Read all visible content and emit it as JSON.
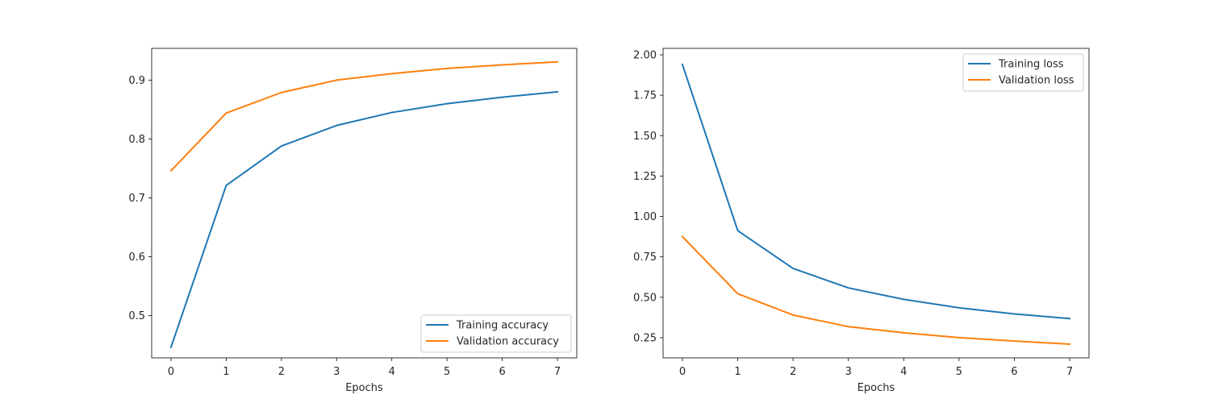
{
  "chart_data": [
    {
      "type": "line",
      "title": "",
      "xlabel": "Epochs",
      "ylabel": "",
      "x": [
        0,
        1,
        2,
        3,
        4,
        5,
        6,
        7
      ],
      "xlim": [
        -0.35,
        7.35
      ],
      "ylim": [
        0.428,
        0.954
      ],
      "xticks": [
        0,
        1,
        2,
        3,
        4,
        5,
        6,
        7
      ],
      "xtick_labels": [
        "0",
        "1",
        "2",
        "3",
        "4",
        "5",
        "6",
        "7"
      ],
      "yticks": [
        0.5,
        0.6,
        0.7,
        0.8,
        0.9
      ],
      "ytick_labels": [
        "0.5",
        "0.6",
        "0.7",
        "0.8",
        "0.9"
      ],
      "grid": false,
      "legend_position": "lower-right",
      "series": [
        {
          "name": "Training accuracy",
          "color": "#1f77b4",
          "values": [
            0.446,
            0.721,
            0.788,
            0.823,
            0.845,
            0.86,
            0.871,
            0.88
          ]
        },
        {
          "name": "Validation accuracy",
          "color": "#ff7f0e",
          "values": [
            0.746,
            0.844,
            0.879,
            0.9,
            0.911,
            0.92,
            0.926,
            0.931
          ]
        }
      ]
    },
    {
      "type": "line",
      "title": "",
      "xlabel": "Epochs",
      "ylabel": "",
      "x": [
        0,
        1,
        2,
        3,
        4,
        5,
        6,
        7
      ],
      "xlim": [
        -0.35,
        7.35
      ],
      "ylim": [
        0.125,
        2.04
      ],
      "xticks": [
        0,
        1,
        2,
        3,
        4,
        5,
        6,
        7
      ],
      "xtick_labels": [
        "0",
        "1",
        "2",
        "3",
        "4",
        "5",
        "6",
        "7"
      ],
      "yticks": [
        0.25,
        0.5,
        0.75,
        1.0,
        1.25,
        1.5,
        1.75,
        2.0
      ],
      "ytick_labels": [
        "0.25",
        "0.50",
        "0.75",
        "1.00",
        "1.25",
        "1.50",
        "1.75",
        "2.00"
      ],
      "grid": false,
      "legend_position": "upper-right",
      "series": [
        {
          "name": "Training loss",
          "color": "#1f77b4",
          "values": [
            1.94,
            0.912,
            0.678,
            0.558,
            0.487,
            0.435,
            0.397,
            0.368
          ]
        },
        {
          "name": "Validation loss",
          "color": "#ff7f0e",
          "values": [
            0.875,
            0.522,
            0.39,
            0.318,
            0.28,
            0.25,
            0.229,
            0.21
          ]
        }
      ]
    }
  ]
}
